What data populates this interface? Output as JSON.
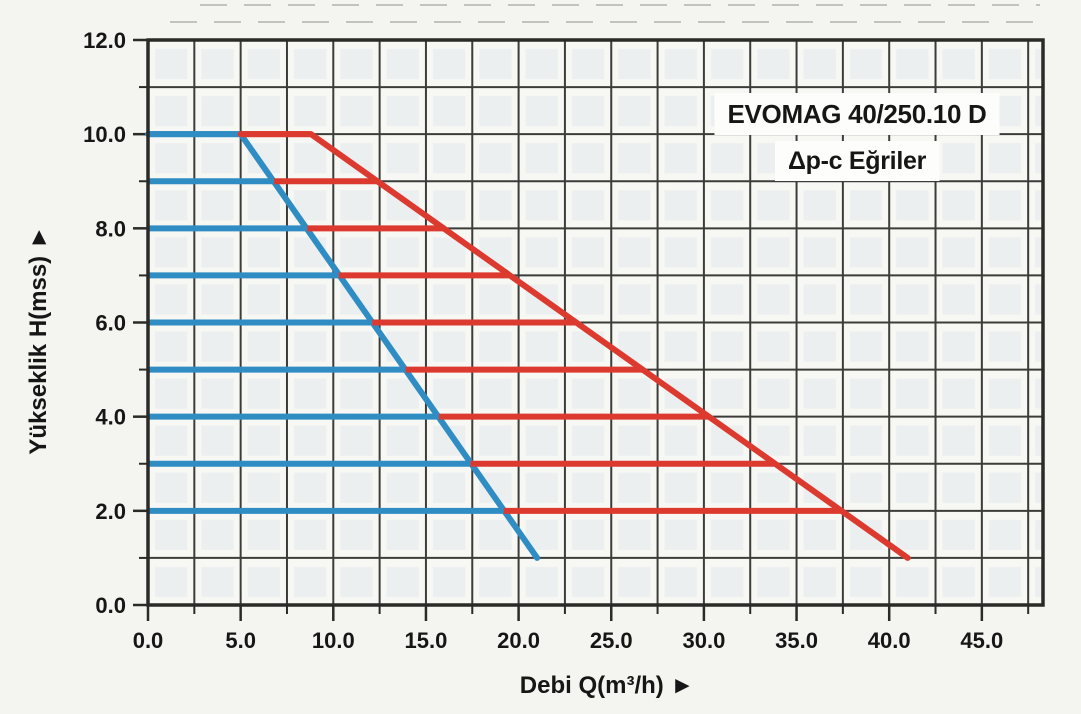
{
  "colors": {
    "paper": "#f4f4f0",
    "plot_background": "#f7f7f4",
    "cell_tint": "#d9e2eb",
    "grid": "#3c3c3a",
    "frame": "#2a2a28",
    "text": "#161616",
    "label_box": "#fdfdfc",
    "blue_series": "#2f8dc4",
    "red_series": "#dd3a2f",
    "scan_artifact": "#9a9a96"
  },
  "chart_data": {
    "type": "line",
    "title": "EVOMAG 40/250.10 D",
    "subtitle": "Δp-c Eğriler",
    "xlabel": "Debi Q(m³/h) ►",
    "ylabel": "Yükseklik H(mss) ►",
    "xlim": [
      0,
      48.3
    ],
    "ylim": [
      0,
      12
    ],
    "grid": {
      "x_step": 2.5,
      "y_step": 1,
      "visible": true
    },
    "legend": null,
    "x_ticks": {
      "values": [
        0,
        5,
        10,
        15,
        20,
        25,
        30,
        35,
        40,
        45
      ],
      "labels": [
        "0.0",
        "5.0",
        "10.0",
        "15.0",
        "20.0",
        "25.0",
        "30.0",
        "35.0",
        "40.0",
        "45.0"
      ],
      "minor_step": 2.5
    },
    "y_ticks": {
      "values": [
        0,
        2,
        4,
        6,
        8,
        10,
        12
      ],
      "labels": [
        "0.0",
        "2.0",
        "4.0",
        "6.0",
        "8.0",
        "10.0",
        "12.0"
      ],
      "minor_step": 1
    },
    "curves_format": "[H_mss, Q_start_m3h, Q_end_m3h]",
    "series": [
      {
        "name": "blue-setting-curves",
        "color": "#2f8dc4",
        "envelope": [
          [
            5,
            10
          ],
          [
            21,
            1
          ]
        ],
        "curves": [
          [
            10,
            0,
            5.0
          ],
          [
            9,
            0,
            6.8
          ],
          [
            8,
            0,
            8.6
          ],
          [
            7,
            0,
            10.3
          ],
          [
            6,
            0,
            12.1
          ],
          [
            5,
            0,
            13.9
          ],
          [
            4,
            0,
            15.7
          ],
          [
            3,
            0,
            17.4
          ],
          [
            2,
            0,
            19.2
          ]
        ]
      },
      {
        "name": "red-setting-curves",
        "color": "#dd3a2f",
        "envelope": [
          [
            8.8,
            10
          ],
          [
            41,
            1
          ]
        ],
        "curves": [
          [
            10,
            5.0,
            8.8
          ],
          [
            9,
            6.8,
            12.4
          ],
          [
            8,
            8.6,
            16.0
          ],
          [
            7,
            10.3,
            19.5
          ],
          [
            6,
            12.1,
            23.1
          ],
          [
            5,
            13.9,
            26.7
          ],
          [
            4,
            15.7,
            30.3
          ],
          [
            3,
            17.4,
            33.8
          ],
          [
            2,
            19.2,
            37.4
          ]
        ]
      }
    ]
  }
}
